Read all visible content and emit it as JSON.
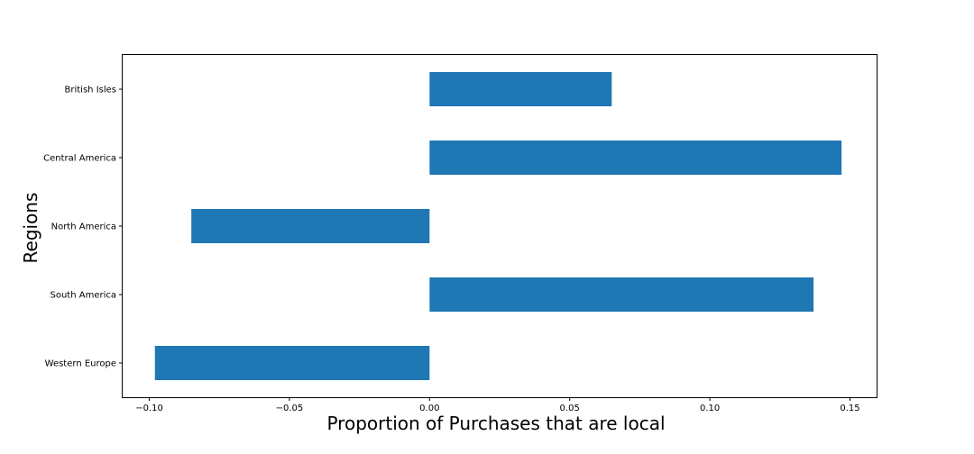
{
  "chart_data": {
    "type": "bar",
    "orientation": "horizontal",
    "title": "",
    "xlabel": "Proportion of Purchases that are local",
    "ylabel": "Regions",
    "categories": [
      "British Isles",
      "Central America",
      "North America",
      "South America",
      "Western Europe"
    ],
    "values": [
      0.065,
      0.147,
      -0.085,
      0.137,
      -0.098
    ],
    "xlim": [
      -0.1095,
      0.1595
    ],
    "xticks": [
      -0.1,
      -0.05,
      0.0,
      0.05,
      0.1,
      0.15
    ],
    "xtick_labels": [
      "−0.10",
      "−0.05",
      "0.00",
      "0.05",
      "0.10",
      "0.15"
    ],
    "bar_color": "#1f77b4",
    "grid": false,
    "legend": "none"
  }
}
